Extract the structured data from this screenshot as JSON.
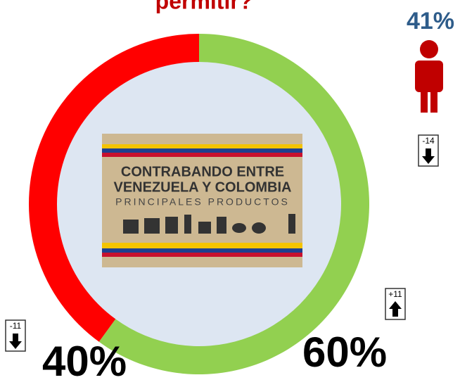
{
  "chart_data": {
    "type": "donut",
    "title": "permitir?",
    "categories": [
      null,
      null
    ],
    "values": [
      60,
      40
    ],
    "value_labels": [
      "60%",
      "40%"
    ],
    "colors": [
      "#92d050",
      "#ff0000"
    ],
    "changes": [
      {
        "value": 11,
        "label": "+11"
      },
      -11
    ]
  },
  "person": {
    "value": 41,
    "value_label": "41%",
    "color": "#c00000",
    "change": -14
  },
  "banner": {
    "title_line1": "CONTRABANDO ENTRE",
    "title_line2": "VENEZUELA Y COLOMBIA",
    "subtitle": "PRINCIPALES PRODUCTOS"
  }
}
